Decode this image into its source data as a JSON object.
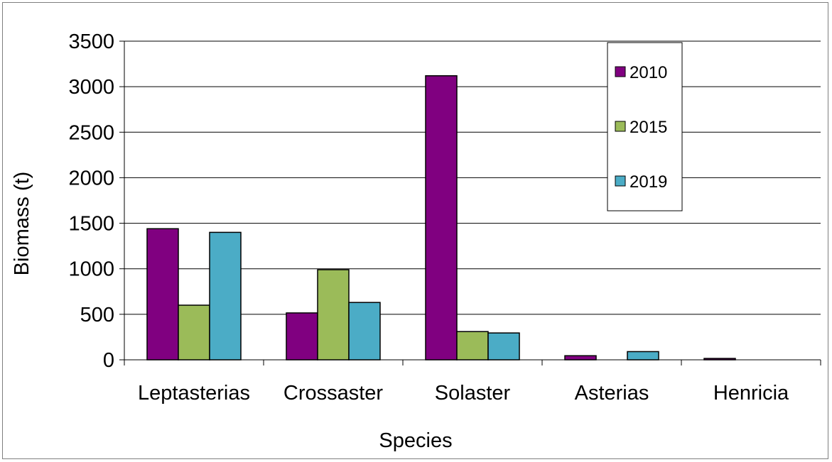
{
  "chart_data": {
    "type": "bar",
    "title": "",
    "xlabel": "Species",
    "ylabel": "Biomass (t)",
    "ylim": [
      0,
      3500
    ],
    "yticks": [
      0,
      500,
      1000,
      1500,
      2000,
      2500,
      3000,
      3500
    ],
    "categories": [
      "Leptasterias",
      "Crossaster",
      "Solaster",
      "Asterias",
      "Henricia"
    ],
    "series": [
      {
        "name": "2010",
        "color": "#800080",
        "values": [
          1440,
          515,
          3120,
          45,
          15
        ]
      },
      {
        "name": "2015",
        "color": "#9BBB59",
        "values": [
          600,
          990,
          310,
          0,
          0
        ]
      },
      {
        "name": "2019",
        "color": "#4BACC6",
        "values": [
          1400,
          630,
          295,
          90,
          0
        ]
      }
    ],
    "grid": true,
    "legend_position": "top-right"
  }
}
